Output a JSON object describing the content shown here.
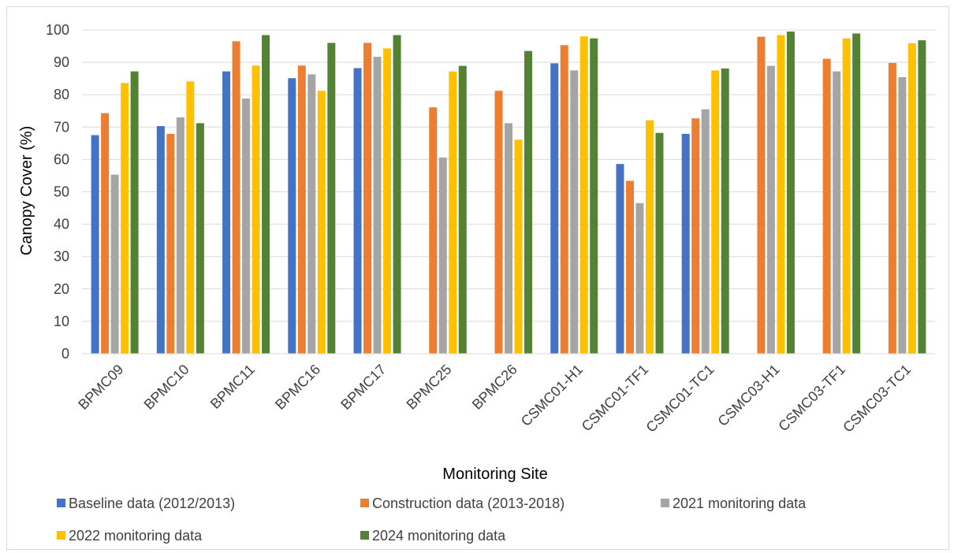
{
  "chart_data": {
    "type": "bar",
    "title": "",
    "xlabel": "Monitoring Site",
    "ylabel": "Canopy Cover (%)",
    "ylim": [
      0,
      100
    ],
    "yticks": [
      0,
      10,
      20,
      30,
      40,
      50,
      60,
      70,
      80,
      90,
      100
    ],
    "grid": true,
    "legend_position": "bottom",
    "categories": [
      "BPMC09",
      "BPMC10",
      "BPMC11",
      "BPMC16",
      "BPMC17",
      "BPMC25",
      "BPMC26",
      "CSMC01-H1",
      "CSMC01-TF1",
      "CSMC01-TC1",
      "CSMC03-H1",
      "CSMC03-TF1",
      "CSMC03-TC1"
    ],
    "series": [
      {
        "name": "Baseline data (2012/2013)",
        "color": "#4472C4",
        "values": [
          67.5,
          70.3,
          87.2,
          85.1,
          88.2,
          null,
          null,
          89.7,
          58.6,
          67.9,
          null,
          null,
          null
        ]
      },
      {
        "name": "Construction data (2013-2018)",
        "color": "#ED7D31",
        "values": [
          74.3,
          67.9,
          96.5,
          89.0,
          96.0,
          76.1,
          81.2,
          95.3,
          53.4,
          72.7,
          97.9,
          91.1,
          89.8
        ]
      },
      {
        "name": "2021 monitoring data",
        "color": "#A5A5A5",
        "values": [
          55.3,
          73.0,
          78.8,
          86.3,
          91.7,
          60.6,
          71.2,
          87.5,
          46.5,
          75.5,
          88.9,
          87.2,
          85.4
        ]
      },
      {
        "name": "2022 monitoring data",
        "color": "#FFC000",
        "values": [
          83.6,
          84.1,
          89.0,
          81.2,
          94.3,
          87.2,
          66.1,
          98.0,
          72.1,
          87.5,
          98.4,
          97.4,
          95.9
        ]
      },
      {
        "name": "2024 monitoring data",
        "color": "#548235",
        "values": [
          87.2,
          71.2,
          98.4,
          96.0,
          98.4,
          88.9,
          93.5,
          97.4,
          68.2,
          88.1,
          99.5,
          98.9,
          96.8
        ]
      }
    ]
  }
}
